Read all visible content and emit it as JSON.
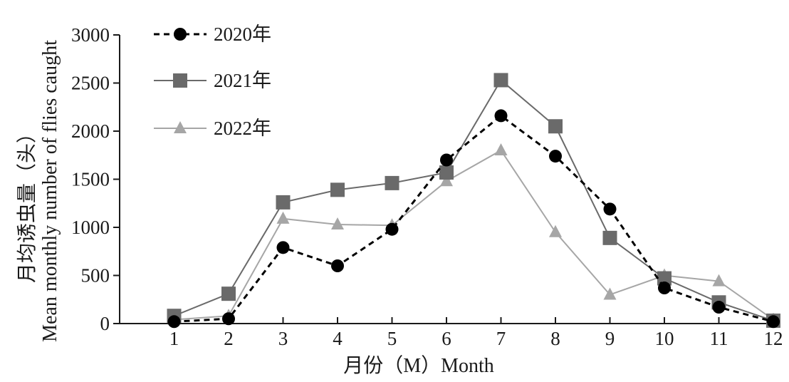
{
  "chart_data": {
    "type": "line",
    "title": "",
    "xlabel": "月份（M）Month",
    "ylabel_cn": "月均诱虫量（头）",
    "ylabel_en": "Mean monthly number of flies caught",
    "x": [
      1,
      2,
      3,
      4,
      5,
      6,
      7,
      8,
      9,
      10,
      11,
      12
    ],
    "x_tick_labels": [
      "1",
      "2",
      "3",
      "4",
      "5",
      "6",
      "7",
      "8",
      "9",
      "10",
      "11",
      "12"
    ],
    "y_ticks": [
      0,
      500,
      1000,
      1500,
      2000,
      2500,
      3000
    ],
    "y_tick_labels": [
      "0",
      "500",
      "1000",
      "1500",
      "2000",
      "2500",
      "3000"
    ],
    "ylim": [
      0,
      3000
    ],
    "grid": false,
    "legend_position": "top-left",
    "series": [
      {
        "name": "2020年",
        "values": [
          20,
          50,
          790,
          600,
          980,
          1700,
          2160,
          1740,
          1190,
          370,
          170,
          20
        ],
        "color": "#000000",
        "marker": "circle",
        "line_style": "dashed"
      },
      {
        "name": "2021年",
        "values": [
          80,
          310,
          1260,
          1390,
          1460,
          1570,
          2530,
          2050,
          890,
          470,
          220,
          30
        ],
        "color": "#6a6a6a",
        "marker": "square",
        "line_style": "solid"
      },
      {
        "name": "2022年",
        "values": [
          40,
          80,
          1090,
          1030,
          1020,
          1480,
          1800,
          950,
          300,
          500,
          440,
          40
        ],
        "color": "#a6a6a6",
        "marker": "triangle",
        "line_style": "solid"
      }
    ]
  }
}
